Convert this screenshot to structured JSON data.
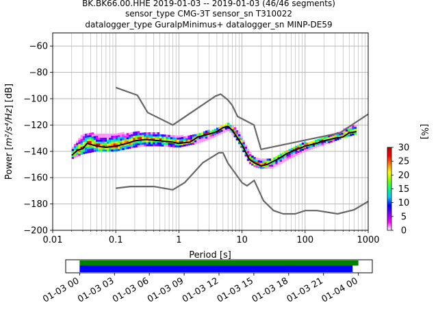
{
  "title": {
    "line1": "BK.BK66.00.HHE   2019-01-03 -- 2019-01-03  (46/46 segments)",
    "line2": "sensor_type CMG-3T sensor_sn T310022",
    "line3": "datalogger_type GuralpMinimus+ datalogger_sn MINP-DE59"
  },
  "chart_data": [
    {
      "type": "heatmap",
      "xlabel": "Period [s]",
      "ylabel_prefix": "Power [",
      "ylabel_math": "m²/s⁴/Hz",
      "ylabel_suffix": "] [dB]",
      "xscale": "log",
      "xlim": [
        0.01,
        1000
      ],
      "ylim": [
        -200,
        -50
      ],
      "xticks": [
        0.01,
        0.1,
        1,
        10,
        100,
        1000
      ],
      "xtick_labels": [
        "0.01",
        "0.1",
        "1",
        "10",
        "100",
        "1000"
      ],
      "yticks": [
        -200,
        -180,
        -160,
        -140,
        -120,
        -100,
        -80,
        -60
      ],
      "ytick_labels": [
        "−200",
        "−180",
        "−160",
        "−140",
        "−120",
        "−100",
        "−80",
        "−60"
      ],
      "grid": true,
      "colorbar": {
        "label": "[%]",
        "ticks": [
          0,
          5,
          10,
          15,
          20,
          25,
          30
        ],
        "tick_labels": [
          "0",
          "5",
          "10",
          "15",
          "20",
          "25",
          "30"
        ],
        "range": [
          0,
          30
        ],
        "colors": [
          "#ffffff",
          "#ff00ff",
          "#8000ff",
          "#0000ff",
          "#00c8ff",
          "#00ff80",
          "#80ff00",
          "#ffff00",
          "#ff8000",
          "#ff0000",
          "#c00000"
        ]
      },
      "series": [
        {
          "kind": "upper_noise_model",
          "color": "#666666",
          "period": [
            0.1,
            0.22,
            0.32,
            0.8,
            3.8,
            4.6,
            6.0,
            7.0,
            8.5,
            15.5,
            20,
            354.8,
            1000
          ],
          "power": [
            -91.5,
            -97.4,
            -110.5,
            -120.0,
            -98.0,
            -96.5,
            -101.0,
            -105.0,
            -113.5,
            -120.0,
            -138.5,
            -126.0,
            -111.7
          ]
        },
        {
          "kind": "lower_noise_model",
          "color": "#666666",
          "period": [
            0.1,
            0.17,
            0.4,
            0.8,
            1.24,
            2.4,
            4.3,
            5.0,
            6.0,
            10.0,
            12.0,
            15.6,
            21.9,
            31.6,
            45,
            70,
            101,
            154,
            328,
            600,
            1000
          ],
          "power": [
            -168.0,
            -166.7,
            -166.7,
            -169.2,
            -163.7,
            -148.6,
            -141.1,
            -141.1,
            -149.0,
            -163.8,
            -166.2,
            -162.1,
            -177.5,
            -185.0,
            -187.5,
            -187.5,
            -185.0,
            -185.0,
            -187.5,
            -184.4,
            -178.0
          ]
        },
        {
          "kind": "mode",
          "color": "#000000",
          "period": [
            0.02,
            0.025,
            0.03,
            0.035,
            0.05,
            0.07,
            0.1,
            0.15,
            0.2,
            0.3,
            0.5,
            0.8,
            1.0,
            1.5,
            2.0,
            3.0,
            4.0,
            5.0,
            6.0,
            7.0,
            8.0,
            10.0,
            13.0,
            16.0,
            20.0,
            25.0,
            30.0,
            40.0,
            50.0,
            70.0,
            100.0,
            150.0,
            200.0,
            300.0,
            400.0,
            500.0,
            650.0
          ],
          "power": [
            -143,
            -139,
            -138,
            -134,
            -136,
            -137,
            -136,
            -134,
            -132,
            -131,
            -132,
            -133,
            -134,
            -133,
            -129,
            -127,
            -125,
            -122,
            -121,
            -124,
            -128,
            -135,
            -146,
            -149,
            -151,
            -150,
            -148,
            -145,
            -142,
            -139,
            -136,
            -134,
            -132,
            -130,
            -129,
            -126,
            -125
          ]
        }
      ],
      "density_band": {
        "note": "PPD histogram band around the mode, colour = probability %",
        "period": [
          0.02,
          0.03,
          0.05,
          0.1,
          0.2,
          0.3,
          0.5,
          1.0,
          2.0,
          3.0,
          5.0,
          6.0,
          8.0,
          10.0,
          13.0,
          16.0,
          20.0,
          30.0,
          50.0,
          100.0,
          200.0,
          400.0,
          650.0
        ],
        "upper": [
          -139,
          -127,
          -127,
          -127,
          -126,
          -126,
          -127,
          -129,
          -128,
          -125,
          -121,
          -119,
          -123,
          -130,
          -141,
          -145,
          -147,
          -146,
          -141,
          -134,
          -130,
          -124,
          -120
        ],
        "lower": [
          -146,
          -142,
          -140,
          -140,
          -137,
          -136,
          -136,
          -137,
          -134,
          -131,
          -126,
          -124,
          -130,
          -138,
          -149,
          -152,
          -153,
          -153,
          -147,
          -140,
          -135,
          -130,
          -127
        ],
        "peak_percent": 30
      }
    },
    {
      "type": "timeline",
      "tick_labels": [
        "01-03 00",
        "01-03 03",
        "01-03 06",
        "01-03 09",
        "01-03 12",
        "01-03 15",
        "01-03 18",
        "01-03 21",
        "01-04 00"
      ],
      "tick_hours": [
        0,
        3,
        6,
        9,
        12,
        15,
        18,
        21,
        24
      ],
      "xlim_hours": [
        -1.2,
        25.2
      ],
      "bars": [
        {
          "kind": "data_coverage",
          "color": "#008000",
          "start_hour": 0,
          "end_hour": 24.0
        },
        {
          "kind": "processed_coverage",
          "color": "#0000ff",
          "start_hour": 0,
          "end_hour": 23.5
        }
      ]
    }
  ]
}
